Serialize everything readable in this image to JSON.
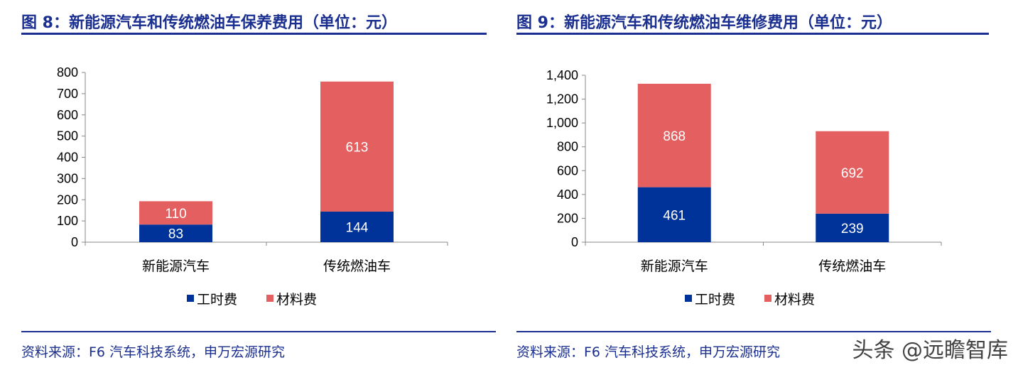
{
  "watermark": "头条 @远瞻智库",
  "colors": {
    "labor": "#003399",
    "material": "#e46060",
    "accent": "#1a2f8f"
  },
  "chart_data": [
    {
      "type": "bar",
      "stacked": true,
      "title": "图 8：新能源汽车和传统燃油车保养费用（单位：元）",
      "source": "资料来源：F6 汽车科技系统，申万宏源研究",
      "categories": [
        "新能源汽车",
        "传统燃油车"
      ],
      "series": [
        {
          "name": "工时费",
          "values": [
            83,
            144
          ]
        },
        {
          "name": "材料费",
          "values": [
            110,
            613
          ]
        }
      ],
      "data_labels": [
        [
          "83",
          "144"
        ],
        [
          "110",
          "613"
        ]
      ],
      "yticks": [
        "0",
        "100",
        "200",
        "300",
        "400",
        "500",
        "600",
        "700",
        "800"
      ],
      "ylim": [
        0,
        800
      ],
      "legend": "bottom"
    },
    {
      "type": "bar",
      "stacked": true,
      "title": "图 9：新能源汽车和传统燃油车维修费用（单位：元）",
      "source": "资料来源：F6 汽车科技系统，申万宏源研究",
      "categories": [
        "新能源汽车",
        "传统燃油车"
      ],
      "series": [
        {
          "name": "工时费",
          "values": [
            461,
            239
          ]
        },
        {
          "name": "材料费",
          "values": [
            868,
            692
          ]
        }
      ],
      "data_labels": [
        [
          "461",
          "239"
        ],
        [
          "868",
          "692"
        ]
      ],
      "yticks": [
        "0",
        "200",
        "400",
        "600",
        "800",
        "1,000",
        "1,200",
        "1,400"
      ],
      "ylim": [
        0,
        1400
      ],
      "legend": "bottom"
    }
  ]
}
